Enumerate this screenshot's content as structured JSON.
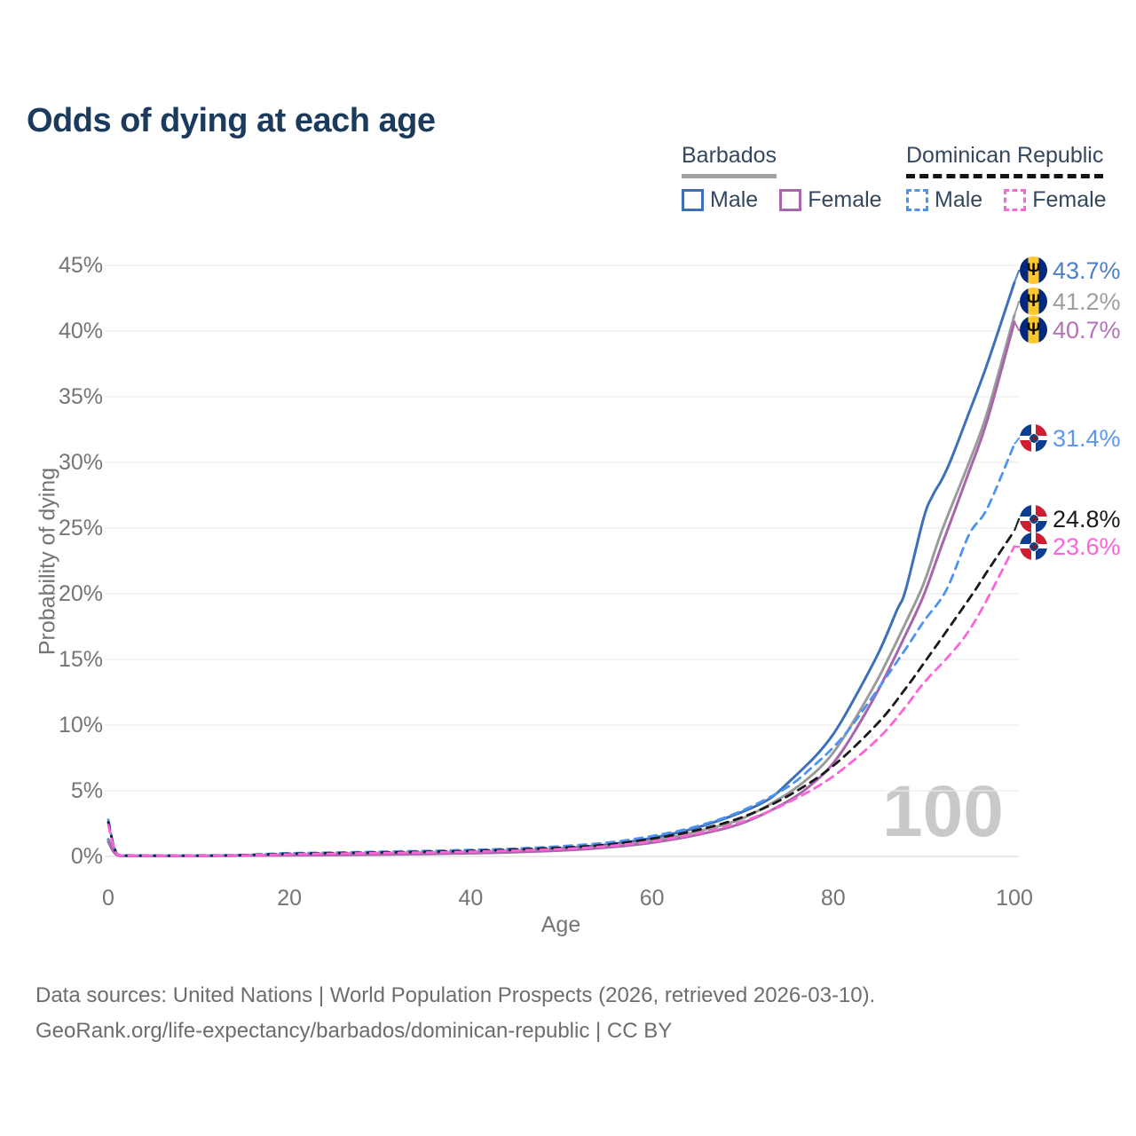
{
  "title": "Odds of dying at each age",
  "watermark": "100",
  "legend": {
    "groups": [
      {
        "title": "Barbados",
        "line_style": "solid",
        "rule_color": "#a3a3a3",
        "items": [
          {
            "label": "Male",
            "color": "#3e6fb9"
          },
          {
            "label": "Female",
            "color": "#a765ab"
          }
        ]
      },
      {
        "title": "Dominican Republic",
        "line_style": "dashed",
        "rule_color": "#141414",
        "items": [
          {
            "label": "Male",
            "color": "#4d93f2"
          },
          {
            "label": "Female",
            "color": "#fc64d8"
          }
        ]
      }
    ]
  },
  "footer": {
    "line1": "Data sources: United Nations | World Population Prospects (2026, retrieved 2026-03-10).",
    "line2": "GeoRank.org/life-expectancy/barbados/dominican-republic | CC BY"
  },
  "chart_data": {
    "type": "line",
    "title": "Odds of dying at each age",
    "xlabel": "Age",
    "ylabel": "Probability of dying",
    "xlim": [
      0,
      100
    ],
    "ylim": [
      0,
      45
    ],
    "x_ticks": [
      0,
      20,
      40,
      60,
      80,
      100
    ],
    "y_ticks": [
      {
        "value": 0,
        "label": "0%"
      },
      {
        "value": 5,
        "label": "5%"
      },
      {
        "value": 10,
        "label": "10%"
      },
      {
        "value": 15,
        "label": "15%"
      },
      {
        "value": 20,
        "label": "20%"
      },
      {
        "value": 25,
        "label": "25%"
      },
      {
        "value": 30,
        "label": "30%"
      },
      {
        "value": 35,
        "label": "35%"
      },
      {
        "value": 40,
        "label": "40%"
      },
      {
        "value": 45,
        "label": "45%"
      }
    ],
    "grid": "horizontal",
    "legend_position": "top-right",
    "series": [
      {
        "name": "Barbados Male",
        "country": "Barbados",
        "sex": "male",
        "color": "#3e6fb9",
        "label_color": "#4e7fc4",
        "dashed": false,
        "flag": "barbados",
        "end_value": 43.7,
        "end_label": "43.7%",
        "points": [
          [
            0,
            1.3
          ],
          [
            1,
            0.12
          ],
          [
            3,
            0.05
          ],
          [
            10,
            0.05
          ],
          [
            15,
            0.08
          ],
          [
            20,
            0.12
          ],
          [
            25,
            0.16
          ],
          [
            30,
            0.2
          ],
          [
            35,
            0.24
          ],
          [
            40,
            0.3
          ],
          [
            45,
            0.42
          ],
          [
            50,
            0.6
          ],
          [
            55,
            0.9
          ],
          [
            60,
            1.4
          ],
          [
            65,
            2.2
          ],
          [
            70,
            3.4
          ],
          [
            73,
            4.4
          ],
          [
            75,
            5.6
          ],
          [
            78,
            7.6
          ],
          [
            80,
            9.3
          ],
          [
            82,
            11.6
          ],
          [
            85,
            15.5
          ],
          [
            87,
            18.7
          ],
          [
            88,
            20.3
          ],
          [
            90,
            25.8
          ],
          [
            91,
            27.5
          ],
          [
            92,
            28.7
          ],
          [
            93,
            30.2
          ],
          [
            95,
            33.8
          ],
          [
            97,
            37.5
          ],
          [
            100,
            43.7
          ]
        ]
      },
      {
        "name": "Barbados Total",
        "country": "Barbados",
        "sex": "both",
        "color": "#9b9b9b",
        "label_color": "#9e9e9e",
        "dashed": false,
        "flag": "barbados",
        "end_value": 41.2,
        "end_label": "41.2%",
        "points": [
          [
            0,
            1.2
          ],
          [
            1,
            0.1
          ],
          [
            3,
            0.05
          ],
          [
            10,
            0.04
          ],
          [
            15,
            0.07
          ],
          [
            20,
            0.1
          ],
          [
            30,
            0.17
          ],
          [
            40,
            0.27
          ],
          [
            45,
            0.36
          ],
          [
            50,
            0.52
          ],
          [
            55,
            0.78
          ],
          [
            60,
            1.2
          ],
          [
            65,
            1.9
          ],
          [
            70,
            2.9
          ],
          [
            75,
            4.8
          ],
          [
            78,
            6.4
          ],
          [
            80,
            7.9
          ],
          [
            82,
            10.0
          ],
          [
            85,
            13.6
          ],
          [
            88,
            17.8
          ],
          [
            90,
            20.8
          ],
          [
            92,
            24.8
          ],
          [
            95,
            30.0
          ],
          [
            97,
            33.8
          ],
          [
            100,
            41.2
          ]
        ]
      },
      {
        "name": "Barbados Female",
        "country": "Barbados",
        "sex": "female",
        "color": "#a765ab",
        "label_color": "#b672b7",
        "dashed": false,
        "flag": "barbados",
        "end_value": 40.7,
        "end_label": "40.7%",
        "points": [
          [
            0,
            1.1
          ],
          [
            1,
            0.09
          ],
          [
            3,
            0.04
          ],
          [
            10,
            0.04
          ],
          [
            15,
            0.06
          ],
          [
            20,
            0.08
          ],
          [
            30,
            0.14
          ],
          [
            40,
            0.24
          ],
          [
            50,
            0.46
          ],
          [
            55,
            0.68
          ],
          [
            60,
            1.05
          ],
          [
            65,
            1.65
          ],
          [
            70,
            2.55
          ],
          [
            75,
            4.2
          ],
          [
            78,
            5.7
          ],
          [
            80,
            7.1
          ],
          [
            82,
            9.1
          ],
          [
            85,
            12.7
          ],
          [
            88,
            16.9
          ],
          [
            90,
            19.9
          ],
          [
            92,
            23.7
          ],
          [
            95,
            29.3
          ],
          [
            97,
            33.2
          ],
          [
            100,
            40.7
          ]
        ]
      },
      {
        "name": "Dominican Republic Male",
        "country": "Dominican Republic",
        "sex": "male",
        "color": "#4d93f2",
        "label_color": "#5b97f0",
        "dashed": true,
        "flag": "dominican-republic",
        "end_value": 31.4,
        "end_label": "31.4%",
        "points": [
          [
            0,
            2.8
          ],
          [
            1,
            0.18
          ],
          [
            3,
            0.08
          ],
          [
            10,
            0.07
          ],
          [
            15,
            0.12
          ],
          [
            18,
            0.2
          ],
          [
            20,
            0.25
          ],
          [
            25,
            0.3
          ],
          [
            30,
            0.36
          ],
          [
            35,
            0.42
          ],
          [
            40,
            0.5
          ],
          [
            45,
            0.6
          ],
          [
            50,
            0.78
          ],
          [
            55,
            1.05
          ],
          [
            60,
            1.55
          ],
          [
            65,
            2.3
          ],
          [
            70,
            3.5
          ],
          [
            75,
            5.3
          ],
          [
            78,
            7.0
          ],
          [
            80,
            8.3
          ],
          [
            82,
            9.9
          ],
          [
            85,
            12.8
          ],
          [
            88,
            15.8
          ],
          [
            90,
            17.9
          ],
          [
            92.5,
            20.3
          ],
          [
            95,
            24.5
          ],
          [
            97,
            26.5
          ],
          [
            100,
            31.4
          ]
        ]
      },
      {
        "name": "Dominican Republic Total",
        "country": "Dominican Republic",
        "sex": "both",
        "color": "#1a1a1a",
        "label_color": "#1a1a1a",
        "dashed": true,
        "flag": "dominican-republic",
        "end_value": 24.8,
        "end_label": "24.8%",
        "points": [
          [
            0,
            2.6
          ],
          [
            1,
            0.16
          ],
          [
            3,
            0.07
          ],
          [
            10,
            0.06
          ],
          [
            15,
            0.1
          ],
          [
            20,
            0.2
          ],
          [
            30,
            0.3
          ],
          [
            40,
            0.42
          ],
          [
            50,
            0.66
          ],
          [
            55,
            0.9
          ],
          [
            60,
            1.35
          ],
          [
            65,
            2.0
          ],
          [
            70,
            3.0
          ],
          [
            75,
            4.6
          ],
          [
            80,
            6.9
          ],
          [
            85,
            10.2
          ],
          [
            88,
            12.8
          ],
          [
            90,
            14.7
          ],
          [
            95,
            19.6
          ],
          [
            97,
            21.7
          ],
          [
            100,
            24.8
          ]
        ]
      },
      {
        "name": "Dominican Republic Female",
        "country": "Dominican Republic",
        "sex": "female",
        "color": "#fc64d8",
        "label_color": "#fc64d8",
        "dashed": true,
        "flag": "dominican-republic",
        "end_value": 23.6,
        "end_label": "23.6%",
        "points": [
          [
            0,
            2.4
          ],
          [
            1,
            0.15
          ],
          [
            3,
            0.06
          ],
          [
            10,
            0.05
          ],
          [
            15,
            0.09
          ],
          [
            20,
            0.16
          ],
          [
            30,
            0.26
          ],
          [
            40,
            0.36
          ],
          [
            50,
            0.56
          ],
          [
            55,
            0.78
          ],
          [
            60,
            1.15
          ],
          [
            65,
            1.75
          ],
          [
            70,
            2.65
          ],
          [
            75,
            4.1
          ],
          [
            80,
            6.1
          ],
          [
            85,
            9.0
          ],
          [
            88,
            11.4
          ],
          [
            90,
            13.2
          ],
          [
            95,
            17.2
          ],
          [
            100,
            23.6
          ]
        ]
      }
    ]
  }
}
